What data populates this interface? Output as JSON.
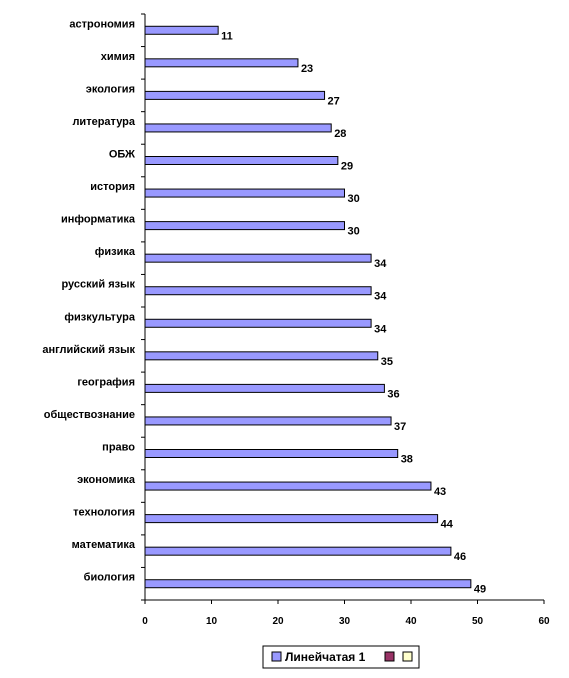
{
  "chart_data": {
    "type": "bar",
    "orientation": "horizontal",
    "categories": [
      "астрономия",
      "химия",
      "экология",
      "литература",
      "ОБЖ",
      "история",
      "информатика",
      "физика",
      "русский язык",
      "физкультура",
      "английский язык",
      "география",
      "обществознание",
      "право",
      "экономика",
      "технология",
      "математика",
      "биология"
    ],
    "series": [
      {
        "name": "Линейчатая 1",
        "values": [
          11,
          23,
          27,
          28,
          29,
          30,
          30,
          34,
          34,
          34,
          35,
          36,
          37,
          38,
          43,
          44,
          46,
          49
        ],
        "color": "#9999ff"
      }
    ],
    "xlim": [
      0,
      60
    ],
    "xticks": [
      0,
      10,
      20,
      30,
      40,
      50,
      60
    ],
    "grid": false,
    "data_labels": true,
    "legend": {
      "position": "bottom",
      "entries": [
        {
          "label": "Линейчатая 1",
          "color": "#9999ff"
        },
        {
          "label": "",
          "color": "#993366"
        },
        {
          "label": "",
          "color": "#ffffcc"
        }
      ]
    }
  }
}
